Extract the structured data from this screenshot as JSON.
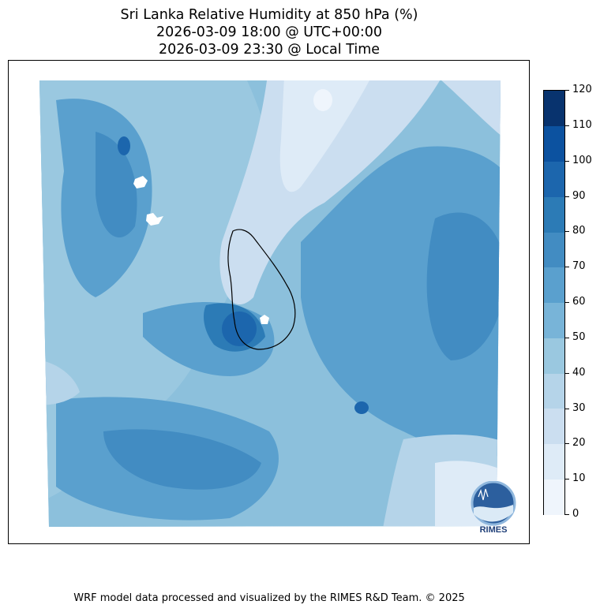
{
  "title": {
    "line1": "Sri Lanka Relative Humidity at 850 hPa (%)",
    "line2": "2026-03-09 18:00 @ UTC+00:00",
    "line3": "2026-03-09 23:30 @ Local Time"
  },
  "colorbar": {
    "ticks": [
      "0",
      "10",
      "20",
      "30",
      "40",
      "50",
      "60",
      "70",
      "80",
      "90",
      "100",
      "110",
      "120"
    ],
    "colors": [
      "#eff5fc",
      "#deebf7",
      "#cbdef0",
      "#b5d4e9",
      "#9ac8e0",
      "#78b4d8",
      "#5aa0ce",
      "#428cc2",
      "#2c7bb6",
      "#1c66ad",
      "#0c52a0",
      "#08336e"
    ]
  },
  "logo": {
    "text": "RIMES"
  },
  "footer": "WRF model data processed and visualized by the RIMES R&D Team. © 2025",
  "chart_data": {
    "type": "heatmap",
    "title": "Sri Lanka Relative Humidity at 850 hPa (%)",
    "levels": [
      0,
      10,
      20,
      30,
      40,
      50,
      60,
      70,
      80,
      90,
      100,
      110,
      120
    ],
    "units": "%"
  }
}
